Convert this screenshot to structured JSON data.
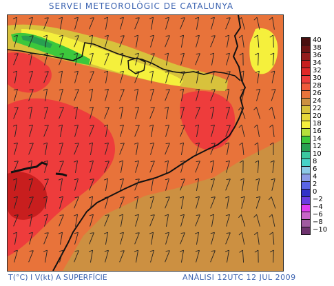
{
  "title": "SERVEI METEOROLÒGIC DE CATALUNYA",
  "footer_left": "T(°C) I V(kt) A SUPERFÍCIE",
  "footer_right": "ANÀLISI 12UTC 12 JUL 2009",
  "legend": [
    {
      "label": "40",
      "color": "#4a1010"
    },
    {
      "label": "38",
      "color": "#6e1414"
    },
    {
      "label": "36",
      "color": "#941c1c"
    },
    {
      "label": "34",
      "color": "#c81e1e"
    },
    {
      "label": "32",
      "color": "#e02828"
    },
    {
      "label": "30",
      "color": "#ee3c3c"
    },
    {
      "label": "28",
      "color": "#f05a3c"
    },
    {
      "label": "26",
      "color": "#e8733a"
    },
    {
      "label": "24",
      "color": "#cc9041"
    },
    {
      "label": "22",
      "color": "#d8c23c"
    },
    {
      "label": "20",
      "color": "#e6d83a"
    },
    {
      "label": "18",
      "color": "#f5f03c"
    },
    {
      "label": "16",
      "color": "#b4e03c"
    },
    {
      "label": "14",
      "color": "#3cc83c"
    },
    {
      "label": "12",
      "color": "#28a050"
    },
    {
      "label": "10",
      "color": "#3cc8a0"
    },
    {
      "label": "8",
      "color": "#46d2c8"
    },
    {
      "label": "6",
      "color": "#8cc8e6"
    },
    {
      "label": "4",
      "color": "#8c9be6"
    },
    {
      "label": "2",
      "color": "#5a64e6"
    },
    {
      "label": "0",
      "color": "#3232c8"
    },
    {
      "label": "−2",
      "color": "#6a3ce0"
    },
    {
      "label": "−4",
      "color": "#e03cf0"
    },
    {
      "label": "−6",
      "color": "#c864c8"
    },
    {
      "label": "−8",
      "color": "#a05aa0"
    },
    {
      "label": "−10",
      "color": "#6e326e"
    }
  ],
  "colors": {
    "base": "#cc9041",
    "warm": "#e8733a",
    "hot": "#ee3c3c",
    "hottest": "#c81e1e",
    "yellow": "#f5f03c",
    "olive": "#d8c23c",
    "green": "#3cc83c",
    "darkgreen": "#28a050",
    "label": "#3a62b0"
  }
}
